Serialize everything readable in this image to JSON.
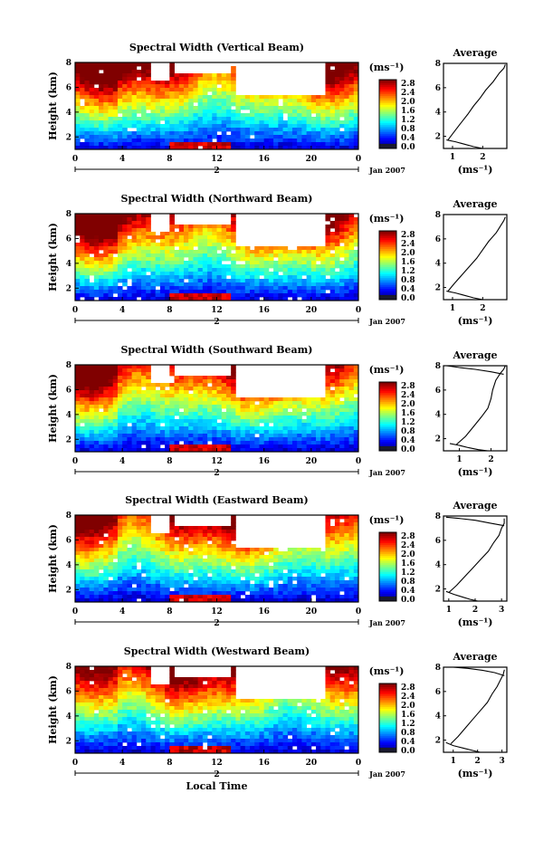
{
  "chart_data": [
    {
      "type": "heatmap",
      "title": "Spectral Width (Vertical Beam)",
      "ylabel": "Height (km)",
      "x_ticks": [
        "0",
        "4",
        "8",
        "12",
        "16",
        "20",
        "0"
      ],
      "y_ticks": [
        "2",
        "4",
        "6",
        "8"
      ],
      "xlim": [
        0,
        24
      ],
      "ylim": [
        1,
        8
      ],
      "date_day": "2",
      "date_label": "Jan 2007",
      "colorbar": {
        "unit": "(ms⁻¹)",
        "ticks": [
          "2.8",
          "2.4",
          "2.0",
          "1.6",
          "1.2",
          "0.8",
          "0.4",
          "0.0"
        ],
        "range": [
          0,
          2.8
        ]
      },
      "average": {
        "title": "Average",
        "x_ticks": [
          "1",
          "2"
        ],
        "xlabel": "(ms⁻¹)",
        "y_ticks": [
          "2",
          "4",
          "6",
          "8"
        ],
        "xlim": [
          0.7,
          2.8
        ],
        "ylim": [
          1,
          8
        ],
        "x": [
          0.85,
          1.0,
          1.25,
          1.5,
          1.7,
          1.9,
          2.1,
          2.35,
          2.55,
          2.7,
          2.75
        ],
        "y": [
          1.7,
          2.2,
          3.0,
          3.8,
          4.5,
          5.1,
          5.8,
          6.5,
          7.2,
          7.6,
          7.9
        ],
        "bottom_x": [
          0.8,
          1.1,
          1.4,
          1.7,
          2.0
        ],
        "bottom_y": [
          1.7,
          1.55,
          1.35,
          1.15,
          1.0
        ]
      }
    },
    {
      "type": "heatmap",
      "title": "Spectral Width (Northward Beam)",
      "ylabel": "Height (km)",
      "x_ticks": [
        "0",
        "4",
        "8",
        "12",
        "16",
        "20",
        "0"
      ],
      "y_ticks": [
        "2",
        "4",
        "6",
        "8"
      ],
      "xlim": [
        0,
        24
      ],
      "ylim": [
        1,
        8
      ],
      "date_day": "2",
      "date_label": "Jan 2007",
      "colorbar": {
        "unit": "(ms⁻¹)",
        "ticks": [
          "2.8",
          "2.4",
          "2.0",
          "1.6",
          "1.2",
          "0.8",
          "0.4",
          "0.0"
        ],
        "range": [
          0,
          2.8
        ]
      },
      "average": {
        "title": "Average",
        "x_ticks": [
          "1",
          "2"
        ],
        "xlabel": "(ms⁻¹)",
        "y_ticks": [
          "2",
          "4",
          "6",
          "8"
        ],
        "xlim": [
          0.7,
          2.8
        ],
        "ylim": [
          1,
          8
        ],
        "x": [
          0.85,
          1.05,
          1.3,
          1.55,
          1.8,
          2.0,
          2.2,
          2.45,
          2.6,
          2.7,
          2.75
        ],
        "y": [
          1.7,
          2.3,
          3.0,
          3.7,
          4.4,
          5.1,
          5.8,
          6.5,
          7.1,
          7.5,
          7.8
        ],
        "bottom_x": [
          0.8,
          1.1,
          1.4,
          1.7,
          2.0
        ],
        "bottom_y": [
          1.7,
          1.55,
          1.35,
          1.15,
          1.0
        ]
      }
    },
    {
      "type": "heatmap",
      "title": "Spectral Width (Southward Beam)",
      "ylabel": "Height (km)",
      "x_ticks": [
        "0",
        "4",
        "8",
        "12",
        "16",
        "20",
        "0"
      ],
      "y_ticks": [
        "2",
        "4",
        "6",
        "8"
      ],
      "xlim": [
        0,
        24
      ],
      "ylim": [
        1,
        8
      ],
      "date_day": "2",
      "date_label": "Jan 2007",
      "colorbar": {
        "unit": "(ms⁻¹)",
        "ticks": [
          "2.8",
          "2.4",
          "2.0",
          "1.6",
          "1.2",
          "0.8",
          "0.4",
          "0.0"
        ],
        "range": [
          0,
          2.8
        ]
      },
      "average": {
        "title": "Average",
        "x_ticks": [
          "1",
          "2"
        ],
        "xlabel": "(ms⁻¹)",
        "y_ticks": [
          "2",
          "4",
          "6",
          "8"
        ],
        "xlim": [
          0.5,
          2.5
        ],
        "ylim": [
          1,
          8
        ],
        "x": [
          0.9,
          1.2,
          1.45,
          1.7,
          1.9,
          2.0,
          2.05,
          2.15,
          2.3,
          2.4,
          2.45
        ],
        "y": [
          1.5,
          2.2,
          3.0,
          3.8,
          4.5,
          5.3,
          6.0,
          6.8,
          7.4,
          7.7,
          8.0
        ],
        "bottom_x": [
          0.7,
          1.0,
          1.3,
          1.6,
          1.9
        ],
        "bottom_y": [
          1.6,
          1.45,
          1.25,
          1.1,
          1.0
        ],
        "top_x": [
          0.6,
          1.0,
          1.5,
          2.0,
          2.4
        ],
        "top_y": [
          8.0,
          7.85,
          7.7,
          7.5,
          7.3
        ]
      }
    },
    {
      "type": "heatmap",
      "title": "Spectral Width (Eastward Beam)",
      "ylabel": "Height (km)",
      "x_ticks": [
        "0",
        "4",
        "8",
        "12",
        "16",
        "20",
        "0"
      ],
      "y_ticks": [
        "2",
        "4",
        "6",
        "8"
      ],
      "xlim": [
        0,
        24
      ],
      "ylim": [
        1,
        8
      ],
      "date_day": "2",
      "date_label": "Jan 2007",
      "colorbar": {
        "unit": "(ms⁻¹)",
        "ticks": [
          "2.8",
          "2.4",
          "2.0",
          "1.6",
          "1.2",
          "0.8",
          "0.4",
          "0.0"
        ],
        "range": [
          0,
          2.8
        ]
      },
      "average": {
        "title": "Average",
        "x_ticks": [
          "1",
          "2",
          "3"
        ],
        "xlabel": "(ms⁻¹)",
        "y_ticks": [
          "2",
          "4",
          "6",
          "8"
        ],
        "xlim": [
          0.8,
          3.2
        ],
        "ylim": [
          1,
          8
        ],
        "x": [
          1.0,
          1.3,
          1.6,
          1.9,
          2.2,
          2.5,
          2.7,
          2.9,
          3.0,
          3.1,
          3.1
        ],
        "y": [
          1.7,
          2.3,
          3.0,
          3.7,
          4.4,
          5.1,
          5.8,
          6.4,
          7.0,
          7.4,
          7.8
        ],
        "bottom_x": [
          0.9,
          1.2,
          1.5,
          1.8,
          2.1
        ],
        "bottom_y": [
          1.8,
          1.55,
          1.35,
          1.15,
          1.0
        ],
        "top_x": [
          0.9,
          1.4,
          2.0,
          2.6,
          3.1
        ],
        "top_y": [
          7.9,
          7.8,
          7.65,
          7.4,
          7.2
        ]
      }
    },
    {
      "type": "heatmap",
      "title": "Spectral Width (Westward Beam)",
      "ylabel": "Height (km)",
      "x_ticks": [
        "0",
        "4",
        "8",
        "12",
        "16",
        "20",
        "0"
      ],
      "y_ticks": [
        "2",
        "4",
        "6",
        "8"
      ],
      "xlim": [
        0,
        24
      ],
      "ylim": [
        1,
        8
      ],
      "date_day": "2",
      "date_label": "Jan 2007",
      "xlabel": "Local Time",
      "colorbar": {
        "unit": "(ms⁻¹)",
        "ticks": [
          "2.8",
          "2.4",
          "2.0",
          "1.6",
          "1.2",
          "0.8",
          "0.4",
          "0.0"
        ],
        "range": [
          0,
          2.8
        ]
      },
      "average": {
        "title": "Average",
        "x_ticks": [
          "1",
          "2",
          "3"
        ],
        "xlabel": "(ms⁻¹)",
        "y_ticks": [
          "2",
          "4",
          "6",
          "8"
        ],
        "xlim": [
          0.6,
          3.2
        ],
        "ylim": [
          1,
          8
        ],
        "x": [
          0.9,
          1.2,
          1.5,
          1.8,
          2.1,
          2.4,
          2.6,
          2.8,
          2.95,
          3.05,
          3.1
        ],
        "y": [
          1.7,
          2.3,
          3.0,
          3.7,
          4.4,
          5.1,
          5.8,
          6.4,
          7.0,
          7.4,
          7.8
        ],
        "bottom_x": [
          0.7,
          1.0,
          1.4,
          1.8,
          2.1
        ],
        "bottom_y": [
          1.8,
          1.55,
          1.35,
          1.15,
          1.0
        ],
        "top_x": [
          1.0,
          1.6,
          2.2,
          2.7,
          3.1
        ],
        "top_y": [
          8.0,
          7.9,
          7.75,
          7.55,
          7.3
        ]
      }
    }
  ]
}
